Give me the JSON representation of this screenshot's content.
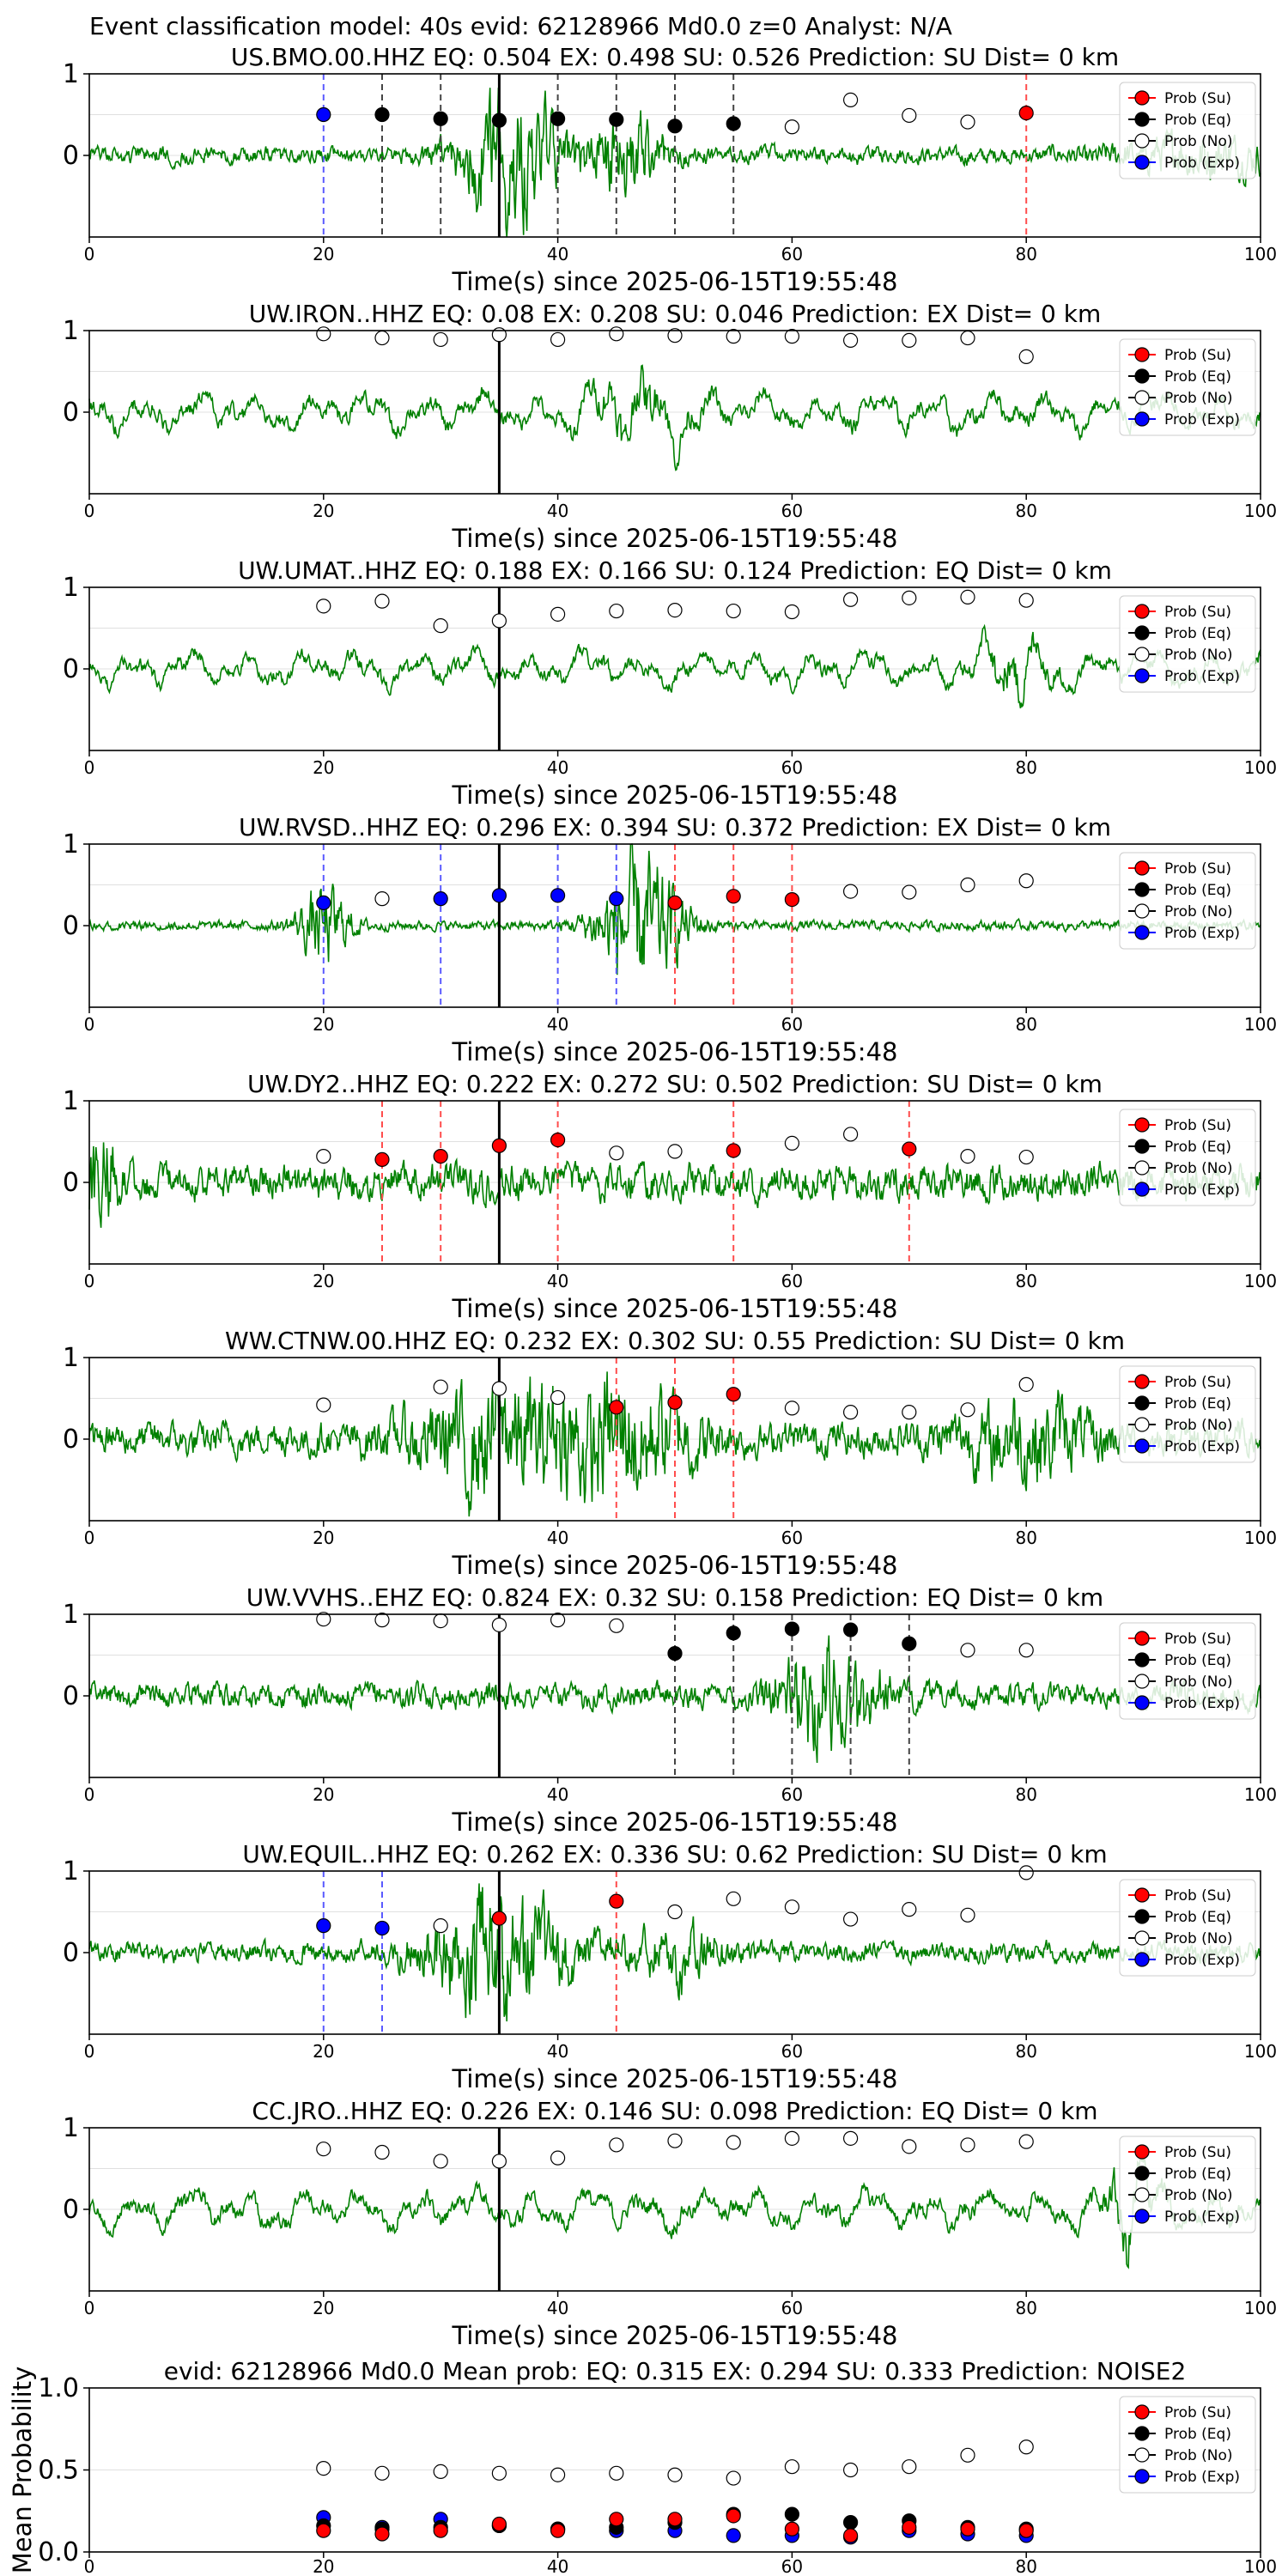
{
  "figure_title": "Event classification model: 40s evid: 62128966 Md0.0 z=0 Analyst: N/A",
  "chart_data": {
    "type": "scatter",
    "x_ticks": [
      0,
      20,
      40,
      60,
      80,
      100
    ],
    "xlim": [
      0,
      100
    ],
    "pick_time": 35,
    "legend": [
      "Prob (Su)",
      "Prob (Eq)",
      "Prob (No)",
      "Prob (Exp)"
    ],
    "legend_position": "top-right",
    "colors": {
      "su": "#ff0000",
      "eq": "#000000",
      "no": "#ffffff",
      "exp": "#0000ff",
      "waveform": "#008000"
    },
    "panels": [
      {
        "title": "US.BMO.00.HHZ   EQ: 0.504  EX: 0.498  SU: 0.526   Prediction: SU    Dist= 0 km",
        "xlabel": "Time(s) since 2025-06-15T19:55:48",
        "y_ticks": [
          "1",
          "0"
        ],
        "wave": {
          "amp": 0.1,
          "bursts": [
            [
              36,
              0.8,
              3
            ],
            [
              46,
              0.5,
              2
            ],
            [
              95,
              0.2,
              5
            ]
          ],
          "lf": 0.3,
          "seed": 1
        },
        "points": [
          {
            "t": 20,
            "cls": "exp",
            "p": 0.5
          },
          {
            "t": 25,
            "cls": "eq",
            "p": 0.5
          },
          {
            "t": 30,
            "cls": "eq",
            "p": 0.45
          },
          {
            "t": 35,
            "cls": "eq",
            "p": 0.43
          },
          {
            "t": 40,
            "cls": "eq",
            "p": 0.45
          },
          {
            "t": 45,
            "cls": "eq",
            "p": 0.44
          },
          {
            "t": 50,
            "cls": "eq",
            "p": 0.36
          },
          {
            "t": 55,
            "cls": "eq",
            "p": 0.39
          },
          {
            "t": 60,
            "cls": "no",
            "p": 0.35
          },
          {
            "t": 65,
            "cls": "no",
            "p": 0.68
          },
          {
            "t": 70,
            "cls": "no",
            "p": 0.49
          },
          {
            "t": 75,
            "cls": "no",
            "p": 0.41
          },
          {
            "t": 80,
            "cls": "su",
            "p": 0.52
          }
        ]
      },
      {
        "title": "UW.IRON..HHZ   EQ: 0.08  EX: 0.208  SU: 0.046   Prediction: EX    Dist= 0 km",
        "xlabel": "Time(s) since 2025-06-15T19:55:48",
        "y_ticks": [
          "1",
          "0"
        ],
        "wave": {
          "amp": 0.25,
          "bursts": [
            [
              47,
              0.4,
              3
            ]
          ],
          "lf": 1.0,
          "seed": 2
        },
        "points": [
          {
            "t": 20,
            "cls": "no",
            "p": 0.96
          },
          {
            "t": 25,
            "cls": "no",
            "p": 0.91
          },
          {
            "t": 30,
            "cls": "no",
            "p": 0.89
          },
          {
            "t": 35,
            "cls": "no",
            "p": 0.95
          },
          {
            "t": 40,
            "cls": "no",
            "p": 0.89
          },
          {
            "t": 45,
            "cls": "no",
            "p": 0.96
          },
          {
            "t": 50,
            "cls": "no",
            "p": 0.94
          },
          {
            "t": 55,
            "cls": "no",
            "p": 0.93
          },
          {
            "t": 60,
            "cls": "no",
            "p": 0.93
          },
          {
            "t": 65,
            "cls": "no",
            "p": 0.88
          },
          {
            "t": 70,
            "cls": "no",
            "p": 0.88
          },
          {
            "t": 75,
            "cls": "no",
            "p": 0.91
          },
          {
            "t": 80,
            "cls": "no",
            "p": 0.68
          }
        ]
      },
      {
        "title": "UW.UMAT..HHZ   EQ: 0.188  EX: 0.166  SU: 0.124   Prediction: EQ    Dist= 0 km",
        "xlabel": "Time(s) since 2025-06-15T19:55:48",
        "y_ticks": [
          "1",
          "0"
        ],
        "wave": {
          "amp": 0.22,
          "bursts": [
            [
              79,
              0.4,
              2
            ]
          ],
          "lf": 1.0,
          "seed": 3
        },
        "points": [
          {
            "t": 20,
            "cls": "no",
            "p": 0.77
          },
          {
            "t": 25,
            "cls": "no",
            "p": 0.83
          },
          {
            "t": 30,
            "cls": "no",
            "p": 0.53
          },
          {
            "t": 35,
            "cls": "no",
            "p": 0.59
          },
          {
            "t": 40,
            "cls": "no",
            "p": 0.67
          },
          {
            "t": 45,
            "cls": "no",
            "p": 0.71
          },
          {
            "t": 50,
            "cls": "no",
            "p": 0.72
          },
          {
            "t": 55,
            "cls": "no",
            "p": 0.71
          },
          {
            "t": 60,
            "cls": "no",
            "p": 0.7
          },
          {
            "t": 65,
            "cls": "no",
            "p": 0.85
          },
          {
            "t": 70,
            "cls": "no",
            "p": 0.87
          },
          {
            "t": 75,
            "cls": "no",
            "p": 0.88
          },
          {
            "t": 80,
            "cls": "no",
            "p": 0.84
          }
        ]
      },
      {
        "title": "UW.RVSD..HHZ   EQ: 0.296  EX: 0.394  SU: 0.372   Prediction: EX    Dist= 0 km",
        "xlabel": "Time(s) since 2025-06-15T19:55:48",
        "y_ticks": [
          "1",
          "0"
        ],
        "wave": {
          "amp": 0.06,
          "bursts": [
            [
              20,
              0.5,
              1.5
            ],
            [
              47,
              0.9,
              2.5
            ]
          ],
          "lf": 0.1,
          "seed": 4
        },
        "points": [
          {
            "t": 20,
            "cls": "exp",
            "p": 0.28
          },
          {
            "t": 25,
            "cls": "no",
            "p": 0.33
          },
          {
            "t": 30,
            "cls": "exp",
            "p": 0.33
          },
          {
            "t": 35,
            "cls": "exp",
            "p": 0.37
          },
          {
            "t": 40,
            "cls": "exp",
            "p": 0.37
          },
          {
            "t": 45,
            "cls": "exp",
            "p": 0.33
          },
          {
            "t": 50,
            "cls": "su",
            "p": 0.28
          },
          {
            "t": 55,
            "cls": "su",
            "p": 0.36
          },
          {
            "t": 60,
            "cls": "su",
            "p": 0.32
          },
          {
            "t": 65,
            "cls": "no",
            "p": 0.42
          },
          {
            "t": 70,
            "cls": "no",
            "p": 0.41
          },
          {
            "t": 75,
            "cls": "no",
            "p": 0.5
          },
          {
            "t": 80,
            "cls": "no",
            "p": 0.55
          }
        ]
      },
      {
        "title": "UW.DY2..HHZ   EQ: 0.222  EX: 0.272  SU: 0.502   Prediction: SU    Dist= 0 km",
        "xlabel": "Time(s) since 2025-06-15T19:55:48",
        "y_ticks": [
          "1",
          "0"
        ],
        "wave": {
          "amp": 0.22,
          "bursts": [
            [
              1,
              0.6,
              1
            ]
          ],
          "lf": 0.2,
          "seed": 5
        },
        "points": [
          {
            "t": 20,
            "cls": "no",
            "p": 0.32
          },
          {
            "t": 25,
            "cls": "su",
            "p": 0.28
          },
          {
            "t": 30,
            "cls": "su",
            "p": 0.32
          },
          {
            "t": 35,
            "cls": "su",
            "p": 0.45
          },
          {
            "t": 40,
            "cls": "su",
            "p": 0.52
          },
          {
            "t": 45,
            "cls": "no",
            "p": 0.36
          },
          {
            "t": 50,
            "cls": "no",
            "p": 0.38
          },
          {
            "t": 55,
            "cls": "su",
            "p": 0.39
          },
          {
            "t": 60,
            "cls": "no",
            "p": 0.48
          },
          {
            "t": 65,
            "cls": "no",
            "p": 0.59
          },
          {
            "t": 70,
            "cls": "su",
            "p": 0.41
          },
          {
            "t": 75,
            "cls": "no",
            "p": 0.32
          },
          {
            "t": 80,
            "cls": "no",
            "p": 0.31
          }
        ]
      },
      {
        "title": "WW.CTNW.00.HHZ   EQ: 0.232  EX: 0.302  SU: 0.55   Prediction: SU    Dist= 0 km",
        "xlabel": "Time(s) since 2025-06-15T19:55:48",
        "y_ticks": [
          "1",
          "0"
        ],
        "wave": {
          "amp": 0.2,
          "bursts": [
            [
              35,
              0.6,
              5
            ],
            [
              46,
              0.6,
              4
            ],
            [
              80,
              0.4,
              4
            ]
          ],
          "lf": 0.3,
          "seed": 6
        },
        "points": [
          {
            "t": 20,
            "cls": "no",
            "p": 0.42
          },
          {
            "t": 30,
            "cls": "no",
            "p": 0.64
          },
          {
            "t": 35,
            "cls": "no",
            "p": 0.62
          },
          {
            "t": 40,
            "cls": "no",
            "p": 0.51
          },
          {
            "t": 45,
            "cls": "su",
            "p": 0.39
          },
          {
            "t": 50,
            "cls": "su",
            "p": 0.45
          },
          {
            "t": 55,
            "cls": "su",
            "p": 0.55
          },
          {
            "t": 60,
            "cls": "no",
            "p": 0.38
          },
          {
            "t": 65,
            "cls": "no",
            "p": 0.33
          },
          {
            "t": 70,
            "cls": "no",
            "p": 0.33
          },
          {
            "t": 75,
            "cls": "no",
            "p": 0.36
          },
          {
            "t": 80,
            "cls": "no",
            "p": 0.67
          }
        ]
      },
      {
        "title": "UW.VVHS..EHZ   EQ: 0.824  EX: 0.32  SU: 0.158   Prediction: EQ    Dist= 0 km",
        "xlabel": "Time(s) since 2025-06-15T19:55:48",
        "y_ticks": [
          "1",
          "0"
        ],
        "wave": {
          "amp": 0.15,
          "bursts": [
            [
              63,
              0.6,
              3
            ]
          ],
          "lf": 0.3,
          "seed": 7
        },
        "points": [
          {
            "t": 20,
            "cls": "no",
            "p": 0.94
          },
          {
            "t": 25,
            "cls": "no",
            "p": 0.93
          },
          {
            "t": 30,
            "cls": "no",
            "p": 0.92
          },
          {
            "t": 35,
            "cls": "no",
            "p": 0.87
          },
          {
            "t": 40,
            "cls": "no",
            "p": 0.93
          },
          {
            "t": 45,
            "cls": "no",
            "p": 0.86
          },
          {
            "t": 50,
            "cls": "eq",
            "p": 0.52
          },
          {
            "t": 55,
            "cls": "eq",
            "p": 0.77
          },
          {
            "t": 60,
            "cls": "eq",
            "p": 0.82
          },
          {
            "t": 65,
            "cls": "eq",
            "p": 0.81
          },
          {
            "t": 70,
            "cls": "eq",
            "p": 0.64
          },
          {
            "t": 75,
            "cls": "no",
            "p": 0.56
          },
          {
            "t": 80,
            "cls": "no",
            "p": 0.56
          }
        ]
      },
      {
        "title": "UW.EQUIL..HHZ   EQ: 0.262  EX: 0.336  SU: 0.62   Prediction: SU    Dist= 0 km",
        "xlabel": "Time(s) since 2025-06-15T19:55:48",
        "y_ticks": [
          "1",
          "0"
        ],
        "wave": {
          "amp": 0.12,
          "bursts": [
            [
              35,
              0.8,
              4
            ],
            [
              50,
              0.3,
              3
            ]
          ],
          "lf": 0.4,
          "seed": 8
        },
        "points": [
          {
            "t": 20,
            "cls": "exp",
            "p": 0.33
          },
          {
            "t": 25,
            "cls": "exp",
            "p": 0.3
          },
          {
            "t": 30,
            "cls": "no",
            "p": 0.33
          },
          {
            "t": 35,
            "cls": "su",
            "p": 0.42
          },
          {
            "t": 45,
            "cls": "su",
            "p": 0.63
          },
          {
            "t": 50,
            "cls": "no",
            "p": 0.5
          },
          {
            "t": 55,
            "cls": "no",
            "p": 0.66
          },
          {
            "t": 60,
            "cls": "no",
            "p": 0.56
          },
          {
            "t": 65,
            "cls": "no",
            "p": 0.41
          },
          {
            "t": 70,
            "cls": "no",
            "p": 0.53
          },
          {
            "t": 75,
            "cls": "no",
            "p": 0.46
          },
          {
            "t": 80,
            "cls": "no",
            "p": 0.98
          }
        ]
      },
      {
        "title": "CC.JRO..HHZ   EQ: 0.226  EX: 0.146  SU: 0.098   Prediction: EQ    Dist= 0 km",
        "xlabel": "Time(s) since 2025-06-15T19:55:48",
        "y_ticks": [
          "1",
          "0"
        ],
        "wave": {
          "amp": 0.25,
          "bursts": [
            [
              89,
              0.6,
              1.5
            ]
          ],
          "lf": 1.0,
          "seed": 9
        },
        "points": [
          {
            "t": 20,
            "cls": "no",
            "p": 0.74
          },
          {
            "t": 25,
            "cls": "no",
            "p": 0.7
          },
          {
            "t": 30,
            "cls": "no",
            "p": 0.59
          },
          {
            "t": 35,
            "cls": "no",
            "p": 0.59
          },
          {
            "t": 40,
            "cls": "no",
            "p": 0.63
          },
          {
            "t": 45,
            "cls": "no",
            "p": 0.79
          },
          {
            "t": 50,
            "cls": "no",
            "p": 0.84
          },
          {
            "t": 55,
            "cls": "no",
            "p": 0.82
          },
          {
            "t": 60,
            "cls": "no",
            "p": 0.87
          },
          {
            "t": 65,
            "cls": "no",
            "p": 0.87
          },
          {
            "t": 70,
            "cls": "no",
            "p": 0.77
          },
          {
            "t": 75,
            "cls": "no",
            "p": 0.79
          },
          {
            "t": 80,
            "cls": "no",
            "p": 0.83
          }
        ]
      }
    ],
    "summary": {
      "title": "evid: 62128966  Md0.0   Mean prob:   EQ: 0.315  EX: 0.294  SU: 0.333   Prediction: NOISE2",
      "ylabel": "Mean Probability",
      "y_ticks": [
        "1.0",
        "0.5",
        "0.0"
      ],
      "ylim": [
        0,
        1
      ],
      "t": [
        20,
        25,
        30,
        35,
        40,
        45,
        50,
        55,
        60,
        65,
        70,
        75,
        80
      ],
      "series": [
        {
          "name": "Prob (No)",
          "cls": "no",
          "values": [
            0.51,
            0.48,
            0.49,
            0.48,
            0.47,
            0.48,
            0.47,
            0.45,
            0.52,
            0.5,
            0.52,
            0.59,
            0.64
          ]
        },
        {
          "name": "Prob (Exp)",
          "cls": "exp",
          "values": [
            0.21,
            0.15,
            0.2,
            0.16,
            0.14,
            0.13,
            0.13,
            0.1,
            0.1,
            0.09,
            0.13,
            0.11,
            0.1
          ]
        },
        {
          "name": "Prob (Eq)",
          "cls": "eq",
          "values": [
            0.16,
            0.14,
            0.15,
            0.16,
            0.14,
            0.15,
            0.18,
            0.23,
            0.23,
            0.18,
            0.19,
            0.15,
            0.14
          ]
        },
        {
          "name": "Prob (Su)",
          "cls": "su",
          "values": [
            0.13,
            0.11,
            0.13,
            0.17,
            0.13,
            0.2,
            0.2,
            0.22,
            0.14,
            0.1,
            0.15,
            0.14,
            0.13
          ]
        }
      ]
    }
  }
}
